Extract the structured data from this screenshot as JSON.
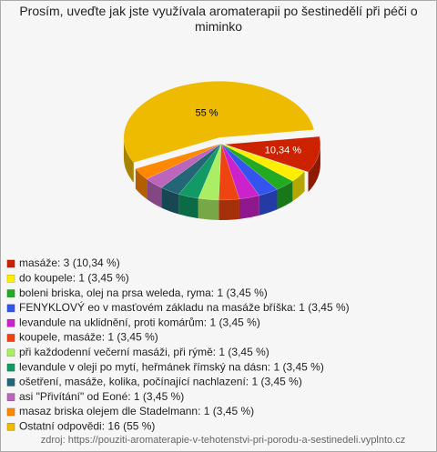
{
  "chart_data": {
    "type": "pie3d",
    "title": "Prosím, uveďte jak jste využívala aromaterapii po šestinedělí při péči o miminko",
    "categories": [
      "masáže: 3 (10,34 %)",
      "do koupele: 1 (3,45 %)",
      "boleni briska, olej na prsa weleda, ryma: 1 (3,45 %)",
      "FENYKLOVÝ eo v masťovém základu na masáže bříška: 1 (3,45 %)",
      "levandule na uklidnění, proti komárům: 1 (3,45 %)",
      "koupele, masáže: 1 (3,45 %)",
      "při každodenní večerní masáži, při rýmě: 1 (3,45 %)",
      "levandule v oleji po mytí, heřmánek římský na dásn: 1 (3,45 %)",
      "ošetření, masáže, kolika, počínající nachlazení: 1 (3,45 %)",
      "asi \"Přivítání\" od Eoné: 1 (3,45 %)",
      "masaz briska olejem dle Stadelmann: 1 (3,45 %)",
      "Ostatní odpovědi: 16 (55 %)"
    ],
    "values": [
      10.34,
      3.45,
      3.45,
      3.45,
      3.45,
      3.45,
      3.45,
      3.45,
      3.45,
      3.45,
      3.45,
      55
    ],
    "value_labels": [
      "10,34 %",
      null,
      null,
      null,
      null,
      null,
      null,
      null,
      null,
      null,
      null,
      "55 %"
    ],
    "colors": [
      "#cc2200",
      "#ffee00",
      "#22aa22",
      "#3355ee",
      "#cc22cc",
      "#ee4411",
      "#aaee66",
      "#119966",
      "#226677",
      "#bb66bb",
      "#ff8800",
      "#eebb00"
    ],
    "source": "zdroj: https://pouziti-aromaterapie-v-tehotenstvi-pri-porodu-a-sestinedeli.vyplnto.cz"
  }
}
